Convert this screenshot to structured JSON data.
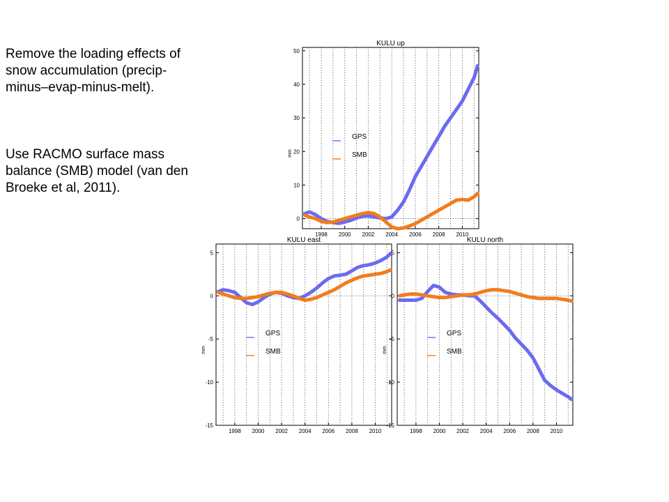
{
  "notes": [
    {
      "lines": [
        "Remove the loading effects of",
        "snow accumulation (precip-",
        "minus–evap-minus-melt)."
      ]
    },
    {
      "lines": [
        "Use RACMO surface mass",
        "balance (SMB) model (van den",
        "Broeke et al, 2011)."
      ]
    }
  ],
  "colors": {
    "gps": "#6b6bf0",
    "smb": "#f07d1e"
  },
  "chart_data": [
    {
      "type": "line",
      "title": "KULU up",
      "xlabel": "",
      "ylabel": "mm",
      "xlim": [
        1996.4,
        2011.4
      ],
      "ylim": [
        -3,
        51
      ],
      "xticks": [
        1998,
        2000,
        2002,
        2004,
        2006,
        2008,
        2010
      ],
      "yticks": [
        0,
        10,
        20,
        30,
        40,
        50
      ],
      "xgrid": [
        1997,
        1998,
        1999,
        2000,
        2001,
        2002,
        2003,
        2004,
        2005,
        2006,
        2007,
        2008,
        2009,
        2010,
        2011
      ],
      "grid": true,
      "grid_style": "dotted vertical lines at each year, dotted horizontal line at zero",
      "legend": "left-middle",
      "series": [
        {
          "name": "GPS",
          "x": [
            1996.6,
            1997.0,
            1997.5,
            1998.0,
            1998.5,
            1999.0,
            1999.5,
            2000.0,
            2000.5,
            2001.0,
            2001.5,
            2002.0,
            2002.5,
            2003.0,
            2003.5,
            2004.0,
            2004.5,
            2005.0,
            2005.5,
            2006.0,
            2006.5,
            2007.0,
            2007.5,
            2008.0,
            2008.5,
            2009.0,
            2009.5,
            2010.0,
            2010.5,
            2011.0,
            2011.3
          ],
          "y": [
            1.5,
            2.0,
            1.2,
            0.0,
            -0.8,
            -1.2,
            -1.4,
            -1.0,
            -0.5,
            0.2,
            0.7,
            0.8,
            0.5,
            0.2,
            0.0,
            0.5,
            2.5,
            5.0,
            8.5,
            12.5,
            15.5,
            18.5,
            21.5,
            24.5,
            27.5,
            30.0,
            32.5,
            35.0,
            38.5,
            42.0,
            45.5
          ]
        },
        {
          "name": "SMB",
          "x": [
            1996.6,
            1997.0,
            1997.5,
            1998.0,
            1998.5,
            1999.0,
            1999.5,
            2000.0,
            2000.5,
            2001.0,
            2001.5,
            2002.0,
            2002.5,
            2003.0,
            2003.5,
            2004.0,
            2004.5,
            2005.0,
            2005.5,
            2006.0,
            2006.5,
            2007.0,
            2007.5,
            2008.0,
            2008.5,
            2009.0,
            2009.5,
            2010.0,
            2010.5,
            2011.0,
            2011.3
          ],
          "y": [
            1.0,
            0.5,
            0.0,
            -0.8,
            -1.2,
            -1.0,
            -0.5,
            0.0,
            0.5,
            1.0,
            1.5,
            1.8,
            1.5,
            0.5,
            -1.0,
            -2.5,
            -3.0,
            -2.8,
            -2.2,
            -1.5,
            -0.5,
            0.5,
            1.5,
            2.5,
            3.5,
            4.5,
            5.5,
            5.7,
            5.5,
            6.5,
            7.5
          ]
        }
      ]
    },
    {
      "type": "line",
      "title": "KULU east",
      "xlabel": "",
      "ylabel": "mm",
      "xlim": [
        1996.4,
        2011.4
      ],
      "ylim": [
        -15,
        6
      ],
      "xticks": [
        1998,
        2000,
        2002,
        2004,
        2006,
        2008,
        2010
      ],
      "yticks": [
        5,
        0,
        -5,
        -10,
        -15
      ],
      "xgrid": [
        1997,
        1998,
        1999,
        2000,
        2001,
        2002,
        2003,
        2004,
        2005,
        2006,
        2007,
        2008,
        2009,
        2010,
        2011
      ],
      "grid": true,
      "grid_style": "dotted vertical lines at each year, dotted horizontal line at zero",
      "legend": "left-middle",
      "series": [
        {
          "name": "GPS",
          "x": [
            1996.6,
            1997.0,
            1997.5,
            1998.0,
            1998.5,
            1999.0,
            1999.5,
            2000.0,
            2000.5,
            2001.0,
            2001.5,
            2002.0,
            2002.5,
            2003.0,
            2003.5,
            2004.0,
            2004.5,
            2005.0,
            2005.5,
            2006.0,
            2006.5,
            2007.0,
            2007.5,
            2008.0,
            2008.5,
            2009.0,
            2009.5,
            2010.0,
            2010.5,
            2011.0,
            2011.3
          ],
          "y": [
            0.5,
            0.7,
            0.6,
            0.4,
            -0.2,
            -0.8,
            -1.0,
            -0.7,
            -0.2,
            0.2,
            0.4,
            0.3,
            0.0,
            -0.2,
            -0.3,
            0.0,
            0.4,
            0.9,
            1.5,
            2.0,
            2.3,
            2.4,
            2.5,
            2.9,
            3.3,
            3.5,
            3.6,
            3.8,
            4.1,
            4.5,
            4.9
          ]
        },
        {
          "name": "SMB",
          "x": [
            1996.6,
            1997.0,
            1997.5,
            1998.0,
            1998.5,
            1999.0,
            1999.5,
            2000.0,
            2000.5,
            2001.0,
            2001.5,
            2002.0,
            2002.5,
            2003.0,
            2003.5,
            2004.0,
            2004.5,
            2005.0,
            2005.5,
            2006.0,
            2006.5,
            2007.0,
            2007.5,
            2008.0,
            2008.5,
            2009.0,
            2009.5,
            2010.0,
            2010.5,
            2011.0,
            2011.3
          ],
          "y": [
            0.4,
            0.2,
            0.0,
            -0.2,
            -0.3,
            -0.3,
            -0.2,
            -0.1,
            0.1,
            0.3,
            0.4,
            0.4,
            0.2,
            0.0,
            -0.3,
            -0.5,
            -0.4,
            -0.2,
            0.1,
            0.4,
            0.7,
            1.1,
            1.5,
            1.8,
            2.1,
            2.3,
            2.4,
            2.5,
            2.6,
            2.8,
            3.0
          ]
        }
      ]
    },
    {
      "type": "line",
      "title": "KULU north",
      "xlabel": "",
      "ylabel": "mm",
      "xlim": [
        1996.4,
        2011.4
      ],
      "ylim": [
        -15,
        6
      ],
      "xticks": [
        1998,
        2000,
        2002,
        2004,
        2006,
        2008,
        2010
      ],
      "yticks": [
        5,
        0,
        -5,
        -10,
        -15
      ],
      "xgrid": [
        1997,
        1998,
        1999,
        2000,
        2001,
        2002,
        2003,
        2004,
        2005,
        2006,
        2007,
        2008,
        2009,
        2010,
        2011
      ],
      "grid": true,
      "grid_style": "dotted vertical lines at each year, dotted horizontal line at zero",
      "legend": "left-middle",
      "series": [
        {
          "name": "GPS",
          "x": [
            1996.6,
            1997.0,
            1997.5,
            1998.0,
            1998.5,
            1999.0,
            1999.5,
            2000.0,
            2000.5,
            2001.0,
            2001.5,
            2002.0,
            2002.5,
            2003.0,
            2003.5,
            2004.0,
            2004.5,
            2005.0,
            2005.5,
            2006.0,
            2006.5,
            2007.0,
            2007.5,
            2008.0,
            2008.5,
            2009.0,
            2009.5,
            2010.0,
            2010.5,
            2011.0,
            2011.3
          ],
          "y": [
            -0.5,
            -0.5,
            -0.5,
            -0.5,
            -0.3,
            0.5,
            1.2,
            1.0,
            0.4,
            0.2,
            0.1,
            0.1,
            0.0,
            0.0,
            -0.6,
            -1.3,
            -2.0,
            -2.6,
            -3.3,
            -4.0,
            -4.9,
            -5.6,
            -6.3,
            -7.2,
            -8.5,
            -9.8,
            -10.4,
            -10.9,
            -11.3,
            -11.7,
            -12.0
          ]
        },
        {
          "name": "SMB",
          "x": [
            1996.6,
            1997.0,
            1997.5,
            1998.0,
            1998.5,
            1999.0,
            1999.5,
            2000.0,
            2000.5,
            2001.0,
            2001.5,
            2002.0,
            2002.5,
            2003.0,
            2003.5,
            2004.0,
            2004.5,
            2005.0,
            2005.5,
            2006.0,
            2006.5,
            2007.0,
            2007.5,
            2008.0,
            2008.5,
            2009.0,
            2009.5,
            2010.0,
            2010.5,
            2011.0,
            2011.3
          ],
          "y": [
            0.0,
            0.1,
            0.2,
            0.2,
            0.1,
            0.0,
            -0.1,
            -0.2,
            -0.2,
            -0.1,
            0.0,
            0.1,
            0.1,
            0.2,
            0.4,
            0.6,
            0.7,
            0.7,
            0.6,
            0.5,
            0.3,
            0.1,
            -0.1,
            -0.2,
            -0.3,
            -0.3,
            -0.3,
            -0.3,
            -0.4,
            -0.5,
            -0.6
          ]
        }
      ]
    }
  ]
}
